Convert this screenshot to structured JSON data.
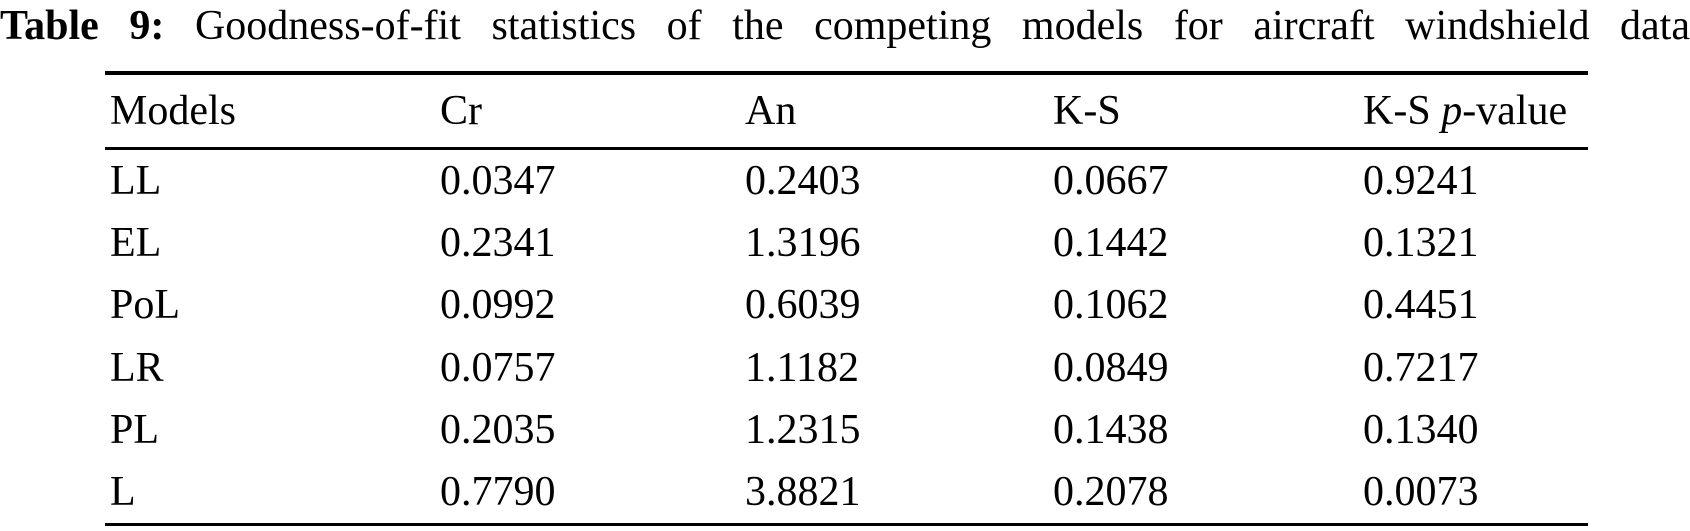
{
  "caption": {
    "label": "Table 9:",
    "text": "Goodness-of-fit statistics of the competing models for aircraft windshield data"
  },
  "table": {
    "headers": [
      {
        "segments": [
          {
            "text": "Models",
            "italic": false
          }
        ]
      },
      {
        "segments": [
          {
            "text": "Cr",
            "italic": false
          }
        ]
      },
      {
        "segments": [
          {
            "text": "An",
            "italic": false
          }
        ]
      },
      {
        "segments": [
          {
            "text": "K-S",
            "italic": false
          }
        ]
      },
      {
        "segments": [
          {
            "text": "K-S ",
            "italic": false
          },
          {
            "text": "p",
            "italic": true
          },
          {
            "text": "-value",
            "italic": false
          }
        ]
      }
    ],
    "column_keys": [
      "model",
      "cr",
      "an",
      "ks",
      "ks_p_value"
    ],
    "rows": [
      {
        "cells": [
          "LL",
          "0.0347",
          "0.2403",
          "0.0667",
          "0.9241"
        ]
      },
      {
        "cells": [
          "EL",
          "0.2341",
          "1.3196",
          "0.1442",
          "0.1321"
        ]
      },
      {
        "cells": [
          "PoL",
          "0.0992",
          "0.6039",
          "0.1062",
          "0.4451"
        ]
      },
      {
        "cells": [
          "LR",
          "0.0757",
          "1.1182",
          "0.0849",
          "0.7217"
        ]
      },
      {
        "cells": [
          "PL",
          "0.2035",
          "1.2315",
          "0.1438",
          "0.1340"
        ]
      },
      {
        "cells": [
          "L",
          "0.7790",
          "3.8821",
          "0.2078",
          "0.0073"
        ]
      }
    ]
  },
  "colors": {
    "text": "#000000",
    "background": "#ffffff",
    "rule": "#000000"
  }
}
